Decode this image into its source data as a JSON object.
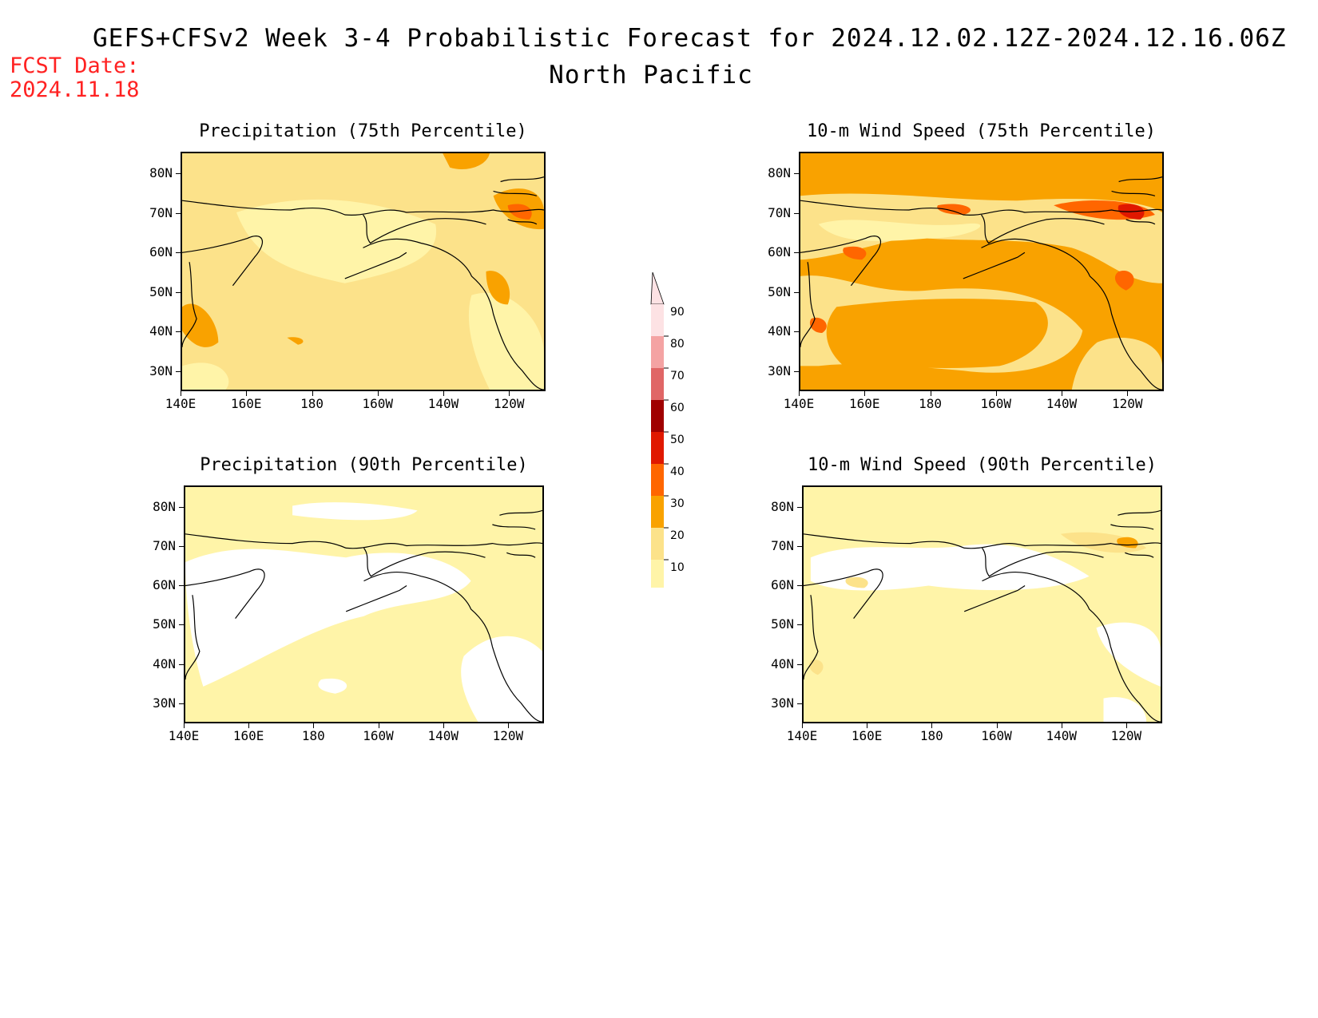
{
  "header": {
    "title_line1": "GEFS+CFSv2 Week 3-4 Probabilistic Forecast for 2024.12.02.12Z-2024.12.16.06Z",
    "title_line2": "North Pacific",
    "fcst_label": "FCST Date:",
    "fcst_date": "2024.11.18"
  },
  "axes": {
    "lat_ticks": [
      "80N",
      "70N",
      "60N",
      "50N",
      "40N",
      "30N"
    ],
    "lon_ticks": [
      "140E",
      "160E",
      "180",
      "160W",
      "140W",
      "120W"
    ]
  },
  "panels": [
    {
      "title": "Precipitation (75th Percentile)",
      "base": "#fce28a",
      "pattern": "precip75"
    },
    {
      "title": "10-m Wind Speed (75th Percentile)",
      "base": "#f9a200",
      "pattern": "wind75"
    },
    {
      "title": "Precipitation (90th Percentile)",
      "base": "#fff4a8",
      "pattern": "precip90"
    },
    {
      "title": "10-m Wind Speed (90th Percentile)",
      "base": "#fff4a8",
      "pattern": "wind90"
    }
  ],
  "colorbar": {
    "labels": [
      "90",
      "80",
      "70",
      "60",
      "50",
      "40",
      "30",
      "20",
      "10"
    ],
    "colors": [
      "#fde2e4",
      "#f4a3a3",
      "#e06666",
      "#a00000",
      "#e01800",
      "#ff6600",
      "#f9a200",
      "#fce28a",
      "#fff4a8"
    ]
  },
  "chart_data": {
    "type": "heatmap",
    "title": "GEFS+CFSv2 Week 3-4 Probabilistic Forecast for 2024.12.02.12Z-2024.12.16.06Z",
    "subtitle": "North Pacific",
    "x_ticks": [
      "140E",
      "160E",
      "180",
      "160W",
      "140W",
      "120W"
    ],
    "y_ticks": [
      "80N",
      "70N",
      "60N",
      "50N",
      "40N",
      "30N"
    ],
    "levels": [
      10,
      20,
      30,
      40,
      50,
      60,
      70,
      80,
      90
    ],
    "panels": [
      "Precipitation (75th Percentile)",
      "10-m Wind Speed (75th Percentile)",
      "Precipitation (90th Percentile)",
      "10-m Wind Speed (90th Percentile)"
    ]
  }
}
